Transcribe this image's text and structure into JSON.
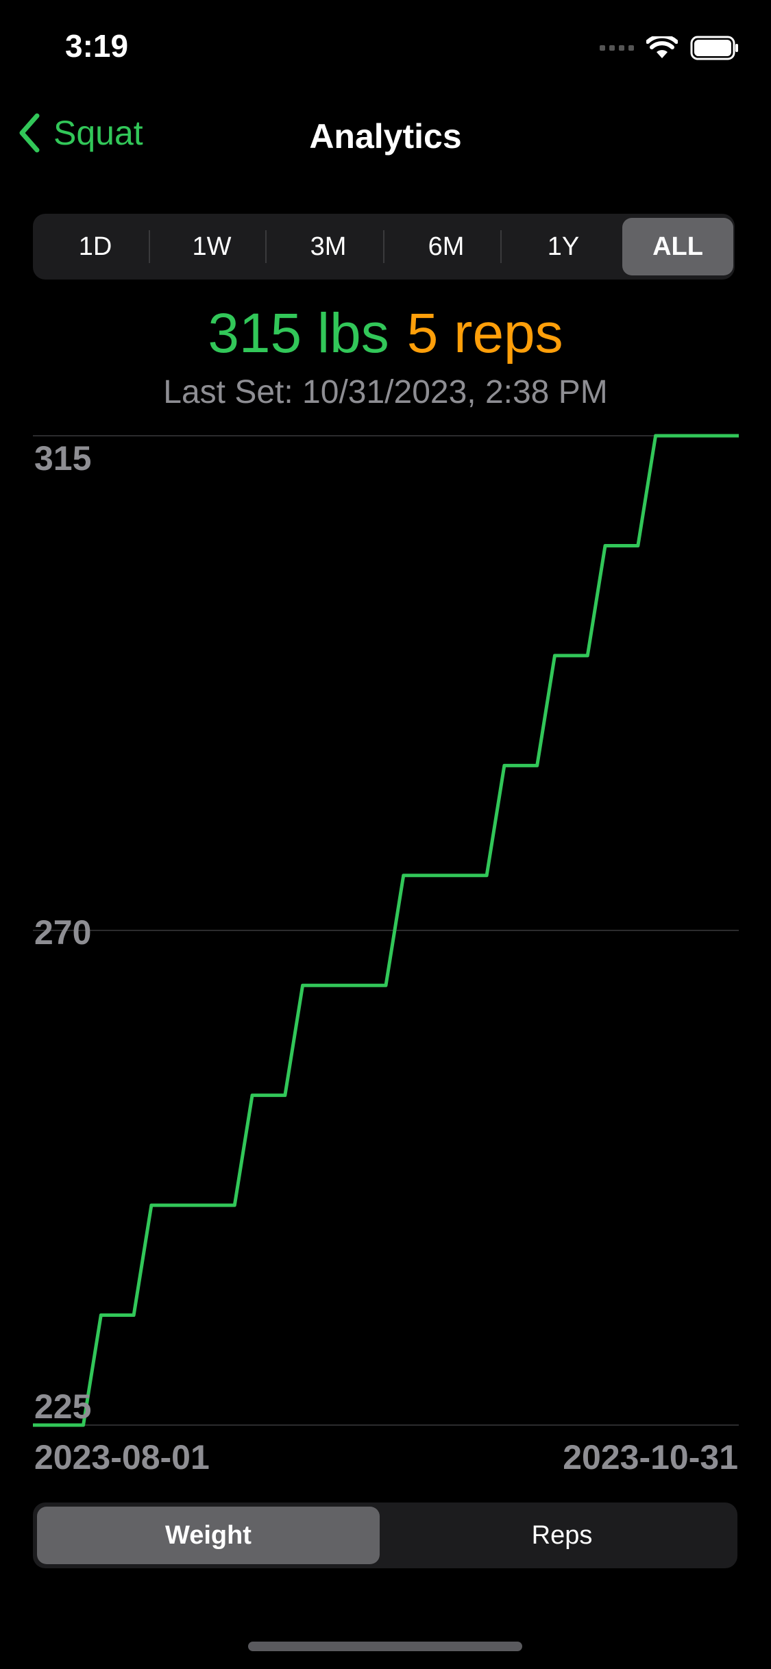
{
  "status_bar": {
    "time": "3:19"
  },
  "nav": {
    "back_label": "Squat",
    "title": "Analytics"
  },
  "range_tabs": {
    "items": [
      "1D",
      "1W",
      "3M",
      "6M",
      "1Y",
      "ALL"
    ],
    "selected": "ALL"
  },
  "summary": {
    "weight": "315 lbs",
    "reps": "5 reps",
    "last_set": "Last Set: 10/31/2023, 2:38 PM"
  },
  "chart_data": {
    "type": "line",
    "interpolation": "step",
    "x_tick_labels": [
      "2023-08-01",
      "2023-10-31"
    ],
    "y_tick_labels": [
      "315",
      "270",
      "225"
    ],
    "ylim": [
      225,
      315
    ],
    "grid": "horizontal",
    "series": [
      {
        "color": "#32c759",
        "values": [
          225,
          235,
          245,
          245,
          255,
          265,
          265,
          275,
          275,
          285,
          295,
          305,
          315,
          315
        ]
      }
    ]
  },
  "metric_tabs": {
    "items": [
      "Weight",
      "Reps"
    ],
    "selected": "Weight"
  },
  "colors": {
    "accent": "#32c759",
    "reps": "#ff9f0a",
    "secondary_text": "#8e8e93"
  }
}
